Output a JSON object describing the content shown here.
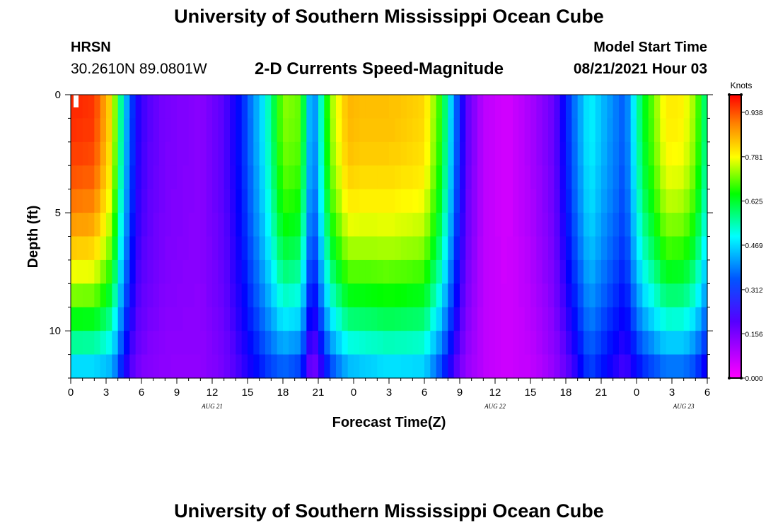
{
  "header": {
    "title": "University of Southern Mississippi Ocean Cube",
    "station": "HRSN",
    "coords": "30.2610N  89.0801W",
    "plot_title": "2-D Currents Speed-Magnitude",
    "start_label": "Model Start Time",
    "start_value": "08/21/2021 Hour 03"
  },
  "footer": {
    "title": "University of Southern Mississippi Ocean Cube"
  },
  "chart_data": {
    "type": "heatmap",
    "title": "2-D Currents Speed-Magnitude",
    "xlabel": "Forecast Time(Z)",
    "ylabel": "Depth (ft)",
    "xlim": [
      0,
      54
    ],
    "ylim": [
      0,
      12
    ],
    "y_inverted": true,
    "x_tick_values": [
      0,
      3,
      6,
      9,
      12,
      15,
      18,
      21,
      24,
      27,
      30,
      33,
      36,
      39,
      42,
      45,
      48,
      51,
      54
    ],
    "x_tick_labels": [
      "0",
      "3",
      "6",
      "9",
      "12",
      "15",
      "18",
      "21",
      "0",
      "3",
      "6",
      "9",
      "12",
      "15",
      "18",
      "21",
      "0",
      "3",
      "6"
    ],
    "y_tick_values": [
      0,
      5,
      10
    ],
    "y_tick_labels": [
      "0",
      "5",
      "10"
    ],
    "date_labels": [
      {
        "text": "AUG 21",
        "x": 12
      },
      {
        "text": "AUG 22",
        "x": 36
      },
      {
        "text": "AUG 23",
        "x": 52
      }
    ],
    "colorbar": {
      "unit": "Knots",
      "min": 0.0,
      "max": 1.0,
      "tick_values": [
        0.0,
        0.156,
        0.312,
        0.469,
        0.625,
        0.781,
        0.938
      ],
      "tick_labels": [
        "0.000",
        "0.156",
        "0.312",
        "0.469",
        "0.625",
        "0.781",
        "0.938"
      ]
    },
    "grid_cols": 108,
    "grid_rows": 12,
    "profile_keyframes": {
      "t": [
        0,
        2,
        3.5,
        4.5,
        5.5,
        6.5,
        8,
        11,
        13,
        14.5,
        16.5,
        18,
        19.5,
        20.5,
        22,
        23.5,
        25,
        27,
        30,
        31.5,
        32.5,
        33.5,
        35,
        37,
        39,
        41,
        42.5,
        44,
        45.5,
        47,
        48.5,
        50.5,
        52,
        53,
        54
      ],
      "surface": [
        0.97,
        0.96,
        0.8,
        0.48,
        0.26,
        0.2,
        0.16,
        0.14,
        0.2,
        0.3,
        0.5,
        0.72,
        0.7,
        0.35,
        0.72,
        0.85,
        0.84,
        0.84,
        0.82,
        0.65,
        0.4,
        0.2,
        0.08,
        0.05,
        0.1,
        0.18,
        0.35,
        0.5,
        0.42,
        0.35,
        0.62,
        0.8,
        0.79,
        0.72,
        0.55
      ],
      "bottom": [
        0.42,
        0.42,
        0.4,
        0.25,
        0.16,
        0.14,
        0.13,
        0.13,
        0.16,
        0.22,
        0.3,
        0.33,
        0.3,
        0.12,
        0.3,
        0.4,
        0.42,
        0.44,
        0.43,
        0.3,
        0.2,
        0.12,
        0.08,
        0.06,
        0.07,
        0.12,
        0.2,
        0.32,
        0.26,
        0.2,
        0.28,
        0.34,
        0.34,
        0.3,
        0.22
      ]
    }
  }
}
